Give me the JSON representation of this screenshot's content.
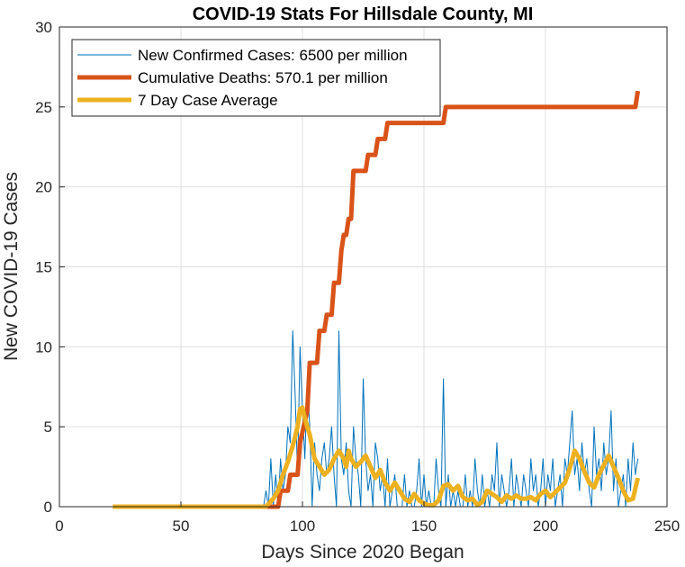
{
  "chart_data": {
    "type": "line",
    "title": "COVID-19 Stats For Hillsdale County, MI",
    "xlabel": "Days Since 2020 Began",
    "ylabel": "New COVID-19 Cases",
    "xlim": [
      0,
      250
    ],
    "ylim": [
      0,
      30
    ],
    "xticks": [
      0,
      50,
      100,
      150,
      200,
      250
    ],
    "yticks": [
      0,
      5,
      10,
      15,
      20,
      25,
      30
    ],
    "grid": true,
    "legend_position": "top-left",
    "series": [
      {
        "name": "New Confirmed Cases: 6500 per million",
        "color": "#0072BD",
        "width": "thin",
        "x": [
          22,
          84,
          85,
          86,
          87,
          88,
          89,
          90,
          91,
          92,
          93,
          94,
          95,
          96,
          97,
          98,
          99,
          100,
          101,
          102,
          103,
          104,
          105,
          106,
          107,
          108,
          109,
          110,
          111,
          112,
          113,
          114,
          115,
          116,
          117,
          118,
          119,
          120,
          121,
          122,
          123,
          124,
          125,
          126,
          127,
          128,
          129,
          130,
          131,
          132,
          133,
          134,
          135,
          136,
          137,
          138,
          139,
          140,
          141,
          142,
          143,
          144,
          145,
          146,
          147,
          148,
          149,
          150,
          151,
          152,
          153,
          154,
          155,
          156,
          157,
          158,
          159,
          160,
          161,
          162,
          163,
          164,
          165,
          166,
          167,
          168,
          169,
          170,
          171,
          172,
          173,
          174,
          175,
          176,
          177,
          178,
          179,
          180,
          181,
          182,
          183,
          184,
          185,
          186,
          187,
          188,
          189,
          190,
          191,
          192,
          193,
          194,
          195,
          196,
          197,
          198,
          199,
          200,
          201,
          202,
          203,
          204,
          205,
          206,
          207,
          208,
          209,
          210,
          211,
          212,
          213,
          214,
          215,
          216,
          217,
          218,
          219,
          220,
          221,
          222,
          223,
          224,
          225,
          226,
          227,
          228,
          229,
          230,
          231,
          232,
          233,
          234,
          235,
          236,
          237,
          238
        ],
        "y": [
          0,
          0,
          1,
          0,
          3,
          0,
          2,
          0,
          3,
          1,
          2,
          5,
          4,
          11,
          7,
          2,
          10,
          6,
          3,
          8,
          5,
          0,
          4,
          2,
          1,
          3,
          4,
          2,
          3,
          5,
          2,
          0,
          11,
          3,
          2,
          4,
          1,
          0,
          5,
          3,
          2,
          0,
          8,
          3,
          1,
          2,
          0,
          4,
          3,
          1,
          2,
          0,
          3,
          0,
          1,
          2,
          0,
          0,
          0,
          2,
          0,
          1,
          0,
          0,
          1,
          3,
          0,
          2,
          0,
          1,
          0,
          0,
          3,
          1,
          0,
          8,
          0,
          2,
          0,
          1,
          0,
          1,
          0,
          0,
          2,
          0,
          1,
          0,
          3,
          1,
          0,
          2,
          0,
          1,
          0,
          2,
          1,
          4,
          0,
          2,
          1,
          0,
          1,
          3,
          0,
          2,
          1,
          0,
          2,
          1,
          0,
          3,
          1,
          2,
          0,
          1,
          3,
          0,
          2,
          1,
          3,
          0,
          1,
          2,
          0,
          3,
          2,
          4,
          6,
          2,
          3,
          1,
          4,
          2,
          3,
          1,
          0,
          5,
          2,
          3,
          1,
          4,
          2,
          3,
          6,
          1,
          3,
          0,
          1,
          2,
          0,
          3,
          1,
          4,
          2,
          3
        ]
      },
      {
        "name": "Cumulative Deaths: 570.1 per million",
        "color": "#D95319",
        "width": "thick",
        "x": [
          22,
          90,
          91,
          94,
          95,
          98,
          99,
          102,
          103,
          106,
          107,
          109,
          110,
          112,
          113,
          115,
          116,
          117,
          118,
          119,
          120,
          121,
          122,
          123,
          124,
          125,
          126,
          127,
          128,
          129,
          130,
          131,
          132,
          133,
          134,
          135,
          136,
          137,
          138,
          139,
          140,
          145,
          150,
          155,
          158,
          159,
          160,
          170,
          180,
          190,
          200,
          210,
          220,
          230,
          237,
          238
        ],
        "y": [
          0,
          0,
          1,
          1,
          2,
          2,
          4,
          6,
          9,
          9,
          11,
          11,
          12,
          12,
          14,
          14,
          16,
          17,
          17,
          18,
          18,
          21,
          21,
          21,
          21,
          21,
          21,
          22,
          22,
          22,
          22,
          23,
          23,
          23,
          23,
          24,
          24,
          24,
          24,
          24,
          24,
          24,
          24,
          24,
          24,
          25,
          25,
          25,
          25,
          25,
          25,
          25,
          25,
          25,
          25,
          26
        ]
      },
      {
        "name": "7 Day Case Average",
        "color": "#EDB120",
        "width": "thick",
        "x": [
          22,
          85,
          88,
          90,
          92,
          94,
          96,
          98,
          99,
          100,
          101,
          103,
          105,
          107,
          109,
          111,
          113,
          115,
          117,
          118,
          119,
          120,
          122,
          124,
          126,
          128,
          130,
          132,
          134,
          136,
          138,
          140,
          142,
          144,
          146,
          148,
          150,
          152,
          154,
          156,
          158,
          160,
          162,
          164,
          166,
          168,
          170,
          172,
          174,
          176,
          178,
          180,
          182,
          184,
          186,
          188,
          190,
          192,
          194,
          196,
          198,
          200,
          202,
          204,
          206,
          208,
          210,
          212,
          214,
          216,
          218,
          220,
          222,
          224,
          226,
          228,
          230,
          232,
          234,
          236,
          238
        ],
        "y": [
          0,
          0,
          0.5,
          1.0,
          2.0,
          2.8,
          3.8,
          5.0,
          6.1,
          6.2,
          5.5,
          4.5,
          3.0,
          2.5,
          2.0,
          2.3,
          3.0,
          3.5,
          3.0,
          2.5,
          3.5,
          3.0,
          2.5,
          2.8,
          3.2,
          2.5,
          1.8,
          2.3,
          1.5,
          1.0,
          1.5,
          1.0,
          0.5,
          0.3,
          0.8,
          0.4,
          0.2,
          0.1,
          0.1,
          0.4,
          1.3,
          1.4,
          1.0,
          1.3,
          0.6,
          0.4,
          0.5,
          0.1,
          0.3,
          1.0,
          0.8,
          0.6,
          0.3,
          0.7,
          0.5,
          0.7,
          0.5,
          0.5,
          0.6,
          0.4,
          0.8,
          1.0,
          0.6,
          0.9,
          1.2,
          1.5,
          2.4,
          3.5,
          3.0,
          2.2,
          1.5,
          1.2,
          2.0,
          2.6,
          3.2,
          2.5,
          1.8,
          1.0,
          0.4,
          0.5,
          1.8
        ]
      }
    ]
  }
}
